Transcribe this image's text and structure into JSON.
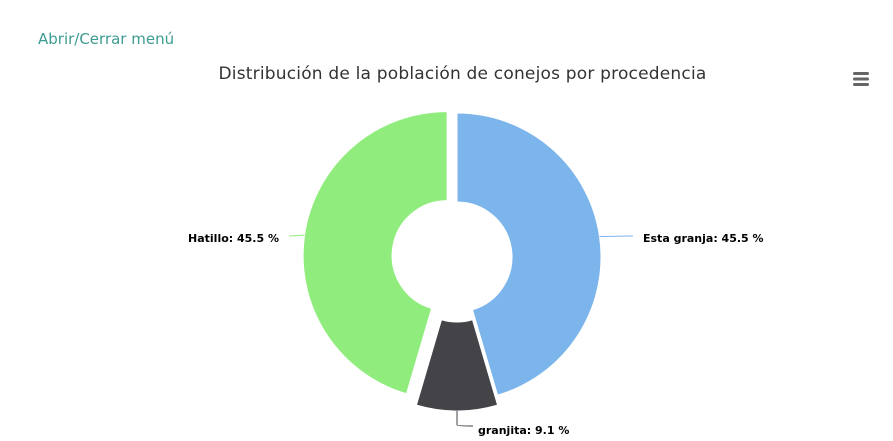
{
  "menu": {
    "toggle_label": "Abrir/Cerrar menú"
  },
  "icons": {
    "export_menu": "hamburger-menu-icon"
  },
  "chart_data": {
    "type": "pie",
    "variant": "donut",
    "title": "Distribución de la población de conejos por procedencia",
    "unit": "%",
    "slices": [
      {
        "name": "Esta granja",
        "value": 45.5,
        "label": "Esta granja: 45.5 %",
        "color": "#7cb5ec",
        "sliced": false
      },
      {
        "name": "granjita",
        "value": 9.1,
        "label": "granjita: 9.1 %",
        "color": "#434348",
        "sliced": true
      },
      {
        "name": "Hatillo",
        "value": 45.5,
        "label": "Hatillo: 45.5 %",
        "color": "#90ed7d",
        "sliced": true
      }
    ],
    "legend": "none",
    "data_labels": true
  }
}
